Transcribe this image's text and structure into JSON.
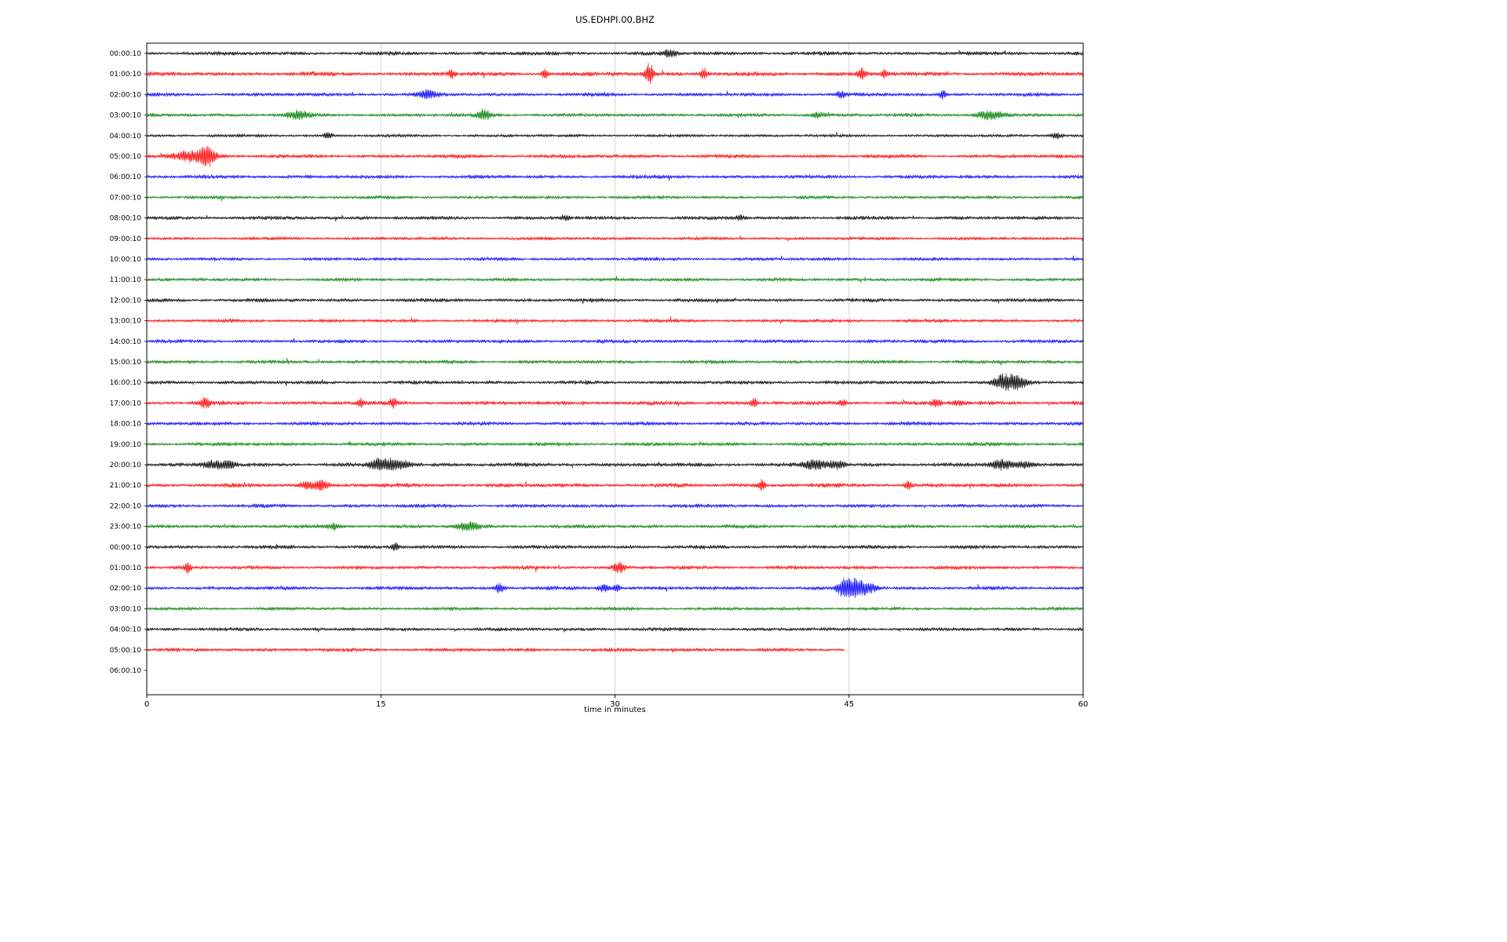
{
  "chart_data": {
    "type": "line",
    "title": "US.EDHPI.00.BHZ",
    "xlabel": "time in minutes",
    "xlim": [
      0,
      60
    ],
    "x_ticks": [
      {
        "value": 0,
        "label": "0"
      },
      {
        "value": 15,
        "label": "15"
      },
      {
        "value": 30,
        "label": "30"
      },
      {
        "value": 45,
        "label": "45"
      },
      {
        "value": 60,
        "label": "60"
      }
    ],
    "grid_x": [
      15,
      30,
      45
    ],
    "grid_color": "#cccccc",
    "trace_color_cycle": [
      "#000000",
      "#ff0000",
      "#0000ff",
      "#008000"
    ],
    "rows": [
      {
        "label": "00:00:10",
        "color": "#000000",
        "duration": 60,
        "base_amp": 2.2,
        "events": [
          {
            "t": 33.5,
            "amp": 4,
            "w": 0.3
          }
        ]
      },
      {
        "label": "01:00:10",
        "color": "#ff0000",
        "duration": 60,
        "base_amp": 2.4,
        "events": [
          {
            "t": 19.5,
            "amp": 6,
            "w": 0.15
          },
          {
            "t": 25.5,
            "amp": 6,
            "w": 0.15
          },
          {
            "t": 32.2,
            "amp": 13,
            "w": 0.2
          },
          {
            "t": 35.7,
            "amp": 8,
            "w": 0.15
          },
          {
            "t": 45.8,
            "amp": 8,
            "w": 0.18
          },
          {
            "t": 47.3,
            "amp": 5,
            "w": 0.15
          }
        ]
      },
      {
        "label": "02:00:10",
        "color": "#0000ff",
        "duration": 60,
        "base_amp": 2.1,
        "events": [
          {
            "t": 18.0,
            "amp": 5,
            "w": 0.4
          },
          {
            "t": 44.5,
            "amp": 4,
            "w": 0.2
          },
          {
            "t": 51.0,
            "amp": 6,
            "w": 0.12
          }
        ]
      },
      {
        "label": "03:00:10",
        "color": "#008000",
        "duration": 60,
        "base_amp": 2.1,
        "events": [
          {
            "t": 9.7,
            "amp": 5,
            "w": 0.5
          },
          {
            "t": 21.6,
            "amp": 7,
            "w": 0.3
          },
          {
            "t": 43.0,
            "amp": 3.5,
            "w": 0.3
          },
          {
            "t": 54.0,
            "amp": 5,
            "w": 0.6
          }
        ]
      },
      {
        "label": "04:00:10",
        "color": "#000000",
        "duration": 60,
        "base_amp": 1.8,
        "events": [
          {
            "t": 11.6,
            "amp": 4,
            "w": 0.2
          },
          {
            "t": 58.3,
            "amp": 3.5,
            "w": 0.3
          }
        ]
      },
      {
        "label": "05:00:10",
        "color": "#ff0000",
        "duration": 60,
        "base_amp": 2.2,
        "events": [
          {
            "t": 3.0,
            "amp": 7,
            "w": 0.9
          },
          {
            "t": 3.9,
            "amp": 11,
            "w": 0.3
          }
        ]
      },
      {
        "label": "06:00:10",
        "color": "#0000ff",
        "duration": 60,
        "base_amp": 2.1,
        "events": []
      },
      {
        "label": "07:00:10",
        "color": "#008000",
        "duration": 60,
        "base_amp": 1.9,
        "events": []
      },
      {
        "label": "08:00:10",
        "color": "#000000",
        "duration": 60,
        "base_amp": 2.1,
        "events": [
          {
            "t": 26.8,
            "amp": 3.5,
            "w": 0.2
          },
          {
            "t": 38.0,
            "amp": 3,
            "w": 0.2
          }
        ]
      },
      {
        "label": "09:00:10",
        "color": "#ff0000",
        "duration": 60,
        "base_amp": 1.9,
        "events": []
      },
      {
        "label": "10:00:10",
        "color": "#0000ff",
        "duration": 60,
        "base_amp": 1.9,
        "events": []
      },
      {
        "label": "11:00:10",
        "color": "#008000",
        "duration": 60,
        "base_amp": 2.0,
        "events": []
      },
      {
        "label": "12:00:10",
        "color": "#000000",
        "duration": 60,
        "base_amp": 2.1,
        "events": []
      },
      {
        "label": "13:00:10",
        "color": "#ff0000",
        "duration": 60,
        "base_amp": 2.0,
        "events": []
      },
      {
        "label": "14:00:10",
        "color": "#0000ff",
        "duration": 60,
        "base_amp": 2.1,
        "events": []
      },
      {
        "label": "15:00:10",
        "color": "#008000",
        "duration": 60,
        "base_amp": 2.1,
        "events": []
      },
      {
        "label": "16:00:10",
        "color": "#000000",
        "duration": 60,
        "base_amp": 2.1,
        "events": [
          {
            "t": 54.8,
            "amp": 9,
            "w": 0.4
          },
          {
            "t": 55.7,
            "amp": 8,
            "w": 0.5
          }
        ]
      },
      {
        "label": "17:00:10",
        "color": "#ff0000",
        "duration": 60,
        "base_amp": 2.3,
        "events": [
          {
            "t": 3.7,
            "amp": 6,
            "w": 0.25
          },
          {
            "t": 13.7,
            "amp": 5,
            "w": 0.15
          },
          {
            "t": 15.8,
            "amp": 6,
            "w": 0.15
          },
          {
            "t": 38.9,
            "amp": 6,
            "w": 0.15
          },
          {
            "t": 44.6,
            "amp": 4,
            "w": 0.15
          },
          {
            "t": 50.6,
            "amp": 5,
            "w": 0.2
          },
          {
            "t": 52.0,
            "amp": 4,
            "w": 0.2
          }
        ]
      },
      {
        "label": "18:00:10",
        "color": "#0000ff",
        "duration": 60,
        "base_amp": 2.1,
        "events": []
      },
      {
        "label": "19:00:10",
        "color": "#008000",
        "duration": 60,
        "base_amp": 2.1,
        "events": []
      },
      {
        "label": "20:00:10",
        "color": "#000000",
        "duration": 60,
        "base_amp": 2.3,
        "events": [
          {
            "t": 4.3,
            "amp": 5,
            "w": 0.5
          },
          {
            "t": 5.3,
            "amp": 4,
            "w": 0.3
          },
          {
            "t": 14.8,
            "amp": 7,
            "w": 0.4
          },
          {
            "t": 15.7,
            "amp": 8,
            "w": 0.3
          },
          {
            "t": 16.5,
            "amp": 5,
            "w": 0.3
          },
          {
            "t": 42.8,
            "amp": 6,
            "w": 0.5
          },
          {
            "t": 44.2,
            "amp": 5,
            "w": 0.4
          },
          {
            "t": 54.8,
            "amp": 6,
            "w": 0.5
          },
          {
            "t": 56.2,
            "amp": 4,
            "w": 0.4
          }
        ]
      },
      {
        "label": "21:00:10",
        "color": "#ff0000",
        "duration": 60,
        "base_amp": 2.3,
        "events": [
          {
            "t": 10.3,
            "amp": 4,
            "w": 0.4
          },
          {
            "t": 11.2,
            "amp": 6,
            "w": 0.3
          },
          {
            "t": 39.4,
            "amp": 7,
            "w": 0.15
          },
          {
            "t": 48.8,
            "amp": 6,
            "w": 0.15
          }
        ]
      },
      {
        "label": "22:00:10",
        "color": "#0000ff",
        "duration": 60,
        "base_amp": 2.1,
        "events": []
      },
      {
        "label": "23:00:10",
        "color": "#008000",
        "duration": 60,
        "base_amp": 2.1,
        "events": [
          {
            "t": 12.0,
            "amp": 3,
            "w": 0.3
          },
          {
            "t": 20.6,
            "amp": 5,
            "w": 0.5
          }
        ]
      },
      {
        "label": "00:00:10",
        "color": "#000000",
        "duration": 60,
        "base_amp": 2.1,
        "events": [
          {
            "t": 15.9,
            "amp": 7,
            "w": 0.12
          }
        ]
      },
      {
        "label": "01:00:10",
        "color": "#ff0000",
        "duration": 60,
        "base_amp": 2.1,
        "events": [
          {
            "t": 2.6,
            "amp": 6,
            "w": 0.15
          },
          {
            "t": 30.3,
            "amp": 8,
            "w": 0.25
          }
        ]
      },
      {
        "label": "02:00:10",
        "color": "#0000ff",
        "duration": 60,
        "base_amp": 2.1,
        "events": [
          {
            "t": 22.6,
            "amp": 6,
            "w": 0.2
          },
          {
            "t": 29.3,
            "amp": 5,
            "w": 0.25
          },
          {
            "t": 30.1,
            "amp": 4,
            "w": 0.2
          },
          {
            "t": 44.7,
            "amp": 13,
            "w": 0.3
          },
          {
            "t": 45.4,
            "amp": 11,
            "w": 0.35
          },
          {
            "t": 46.2,
            "amp": 7,
            "w": 0.4
          }
        ]
      },
      {
        "label": "03:00:10",
        "color": "#008000",
        "duration": 60,
        "base_amp": 1.9,
        "events": []
      },
      {
        "label": "04:00:10",
        "color": "#000000",
        "duration": 60,
        "base_amp": 2.0,
        "events": []
      },
      {
        "label": "05:00:10",
        "color": "#ff0000",
        "duration": 44.7,
        "base_amp": 2.1,
        "events": []
      },
      {
        "label": "06:00:10",
        "color": "#0000ff",
        "duration": 0,
        "base_amp": 0,
        "events": []
      }
    ]
  }
}
